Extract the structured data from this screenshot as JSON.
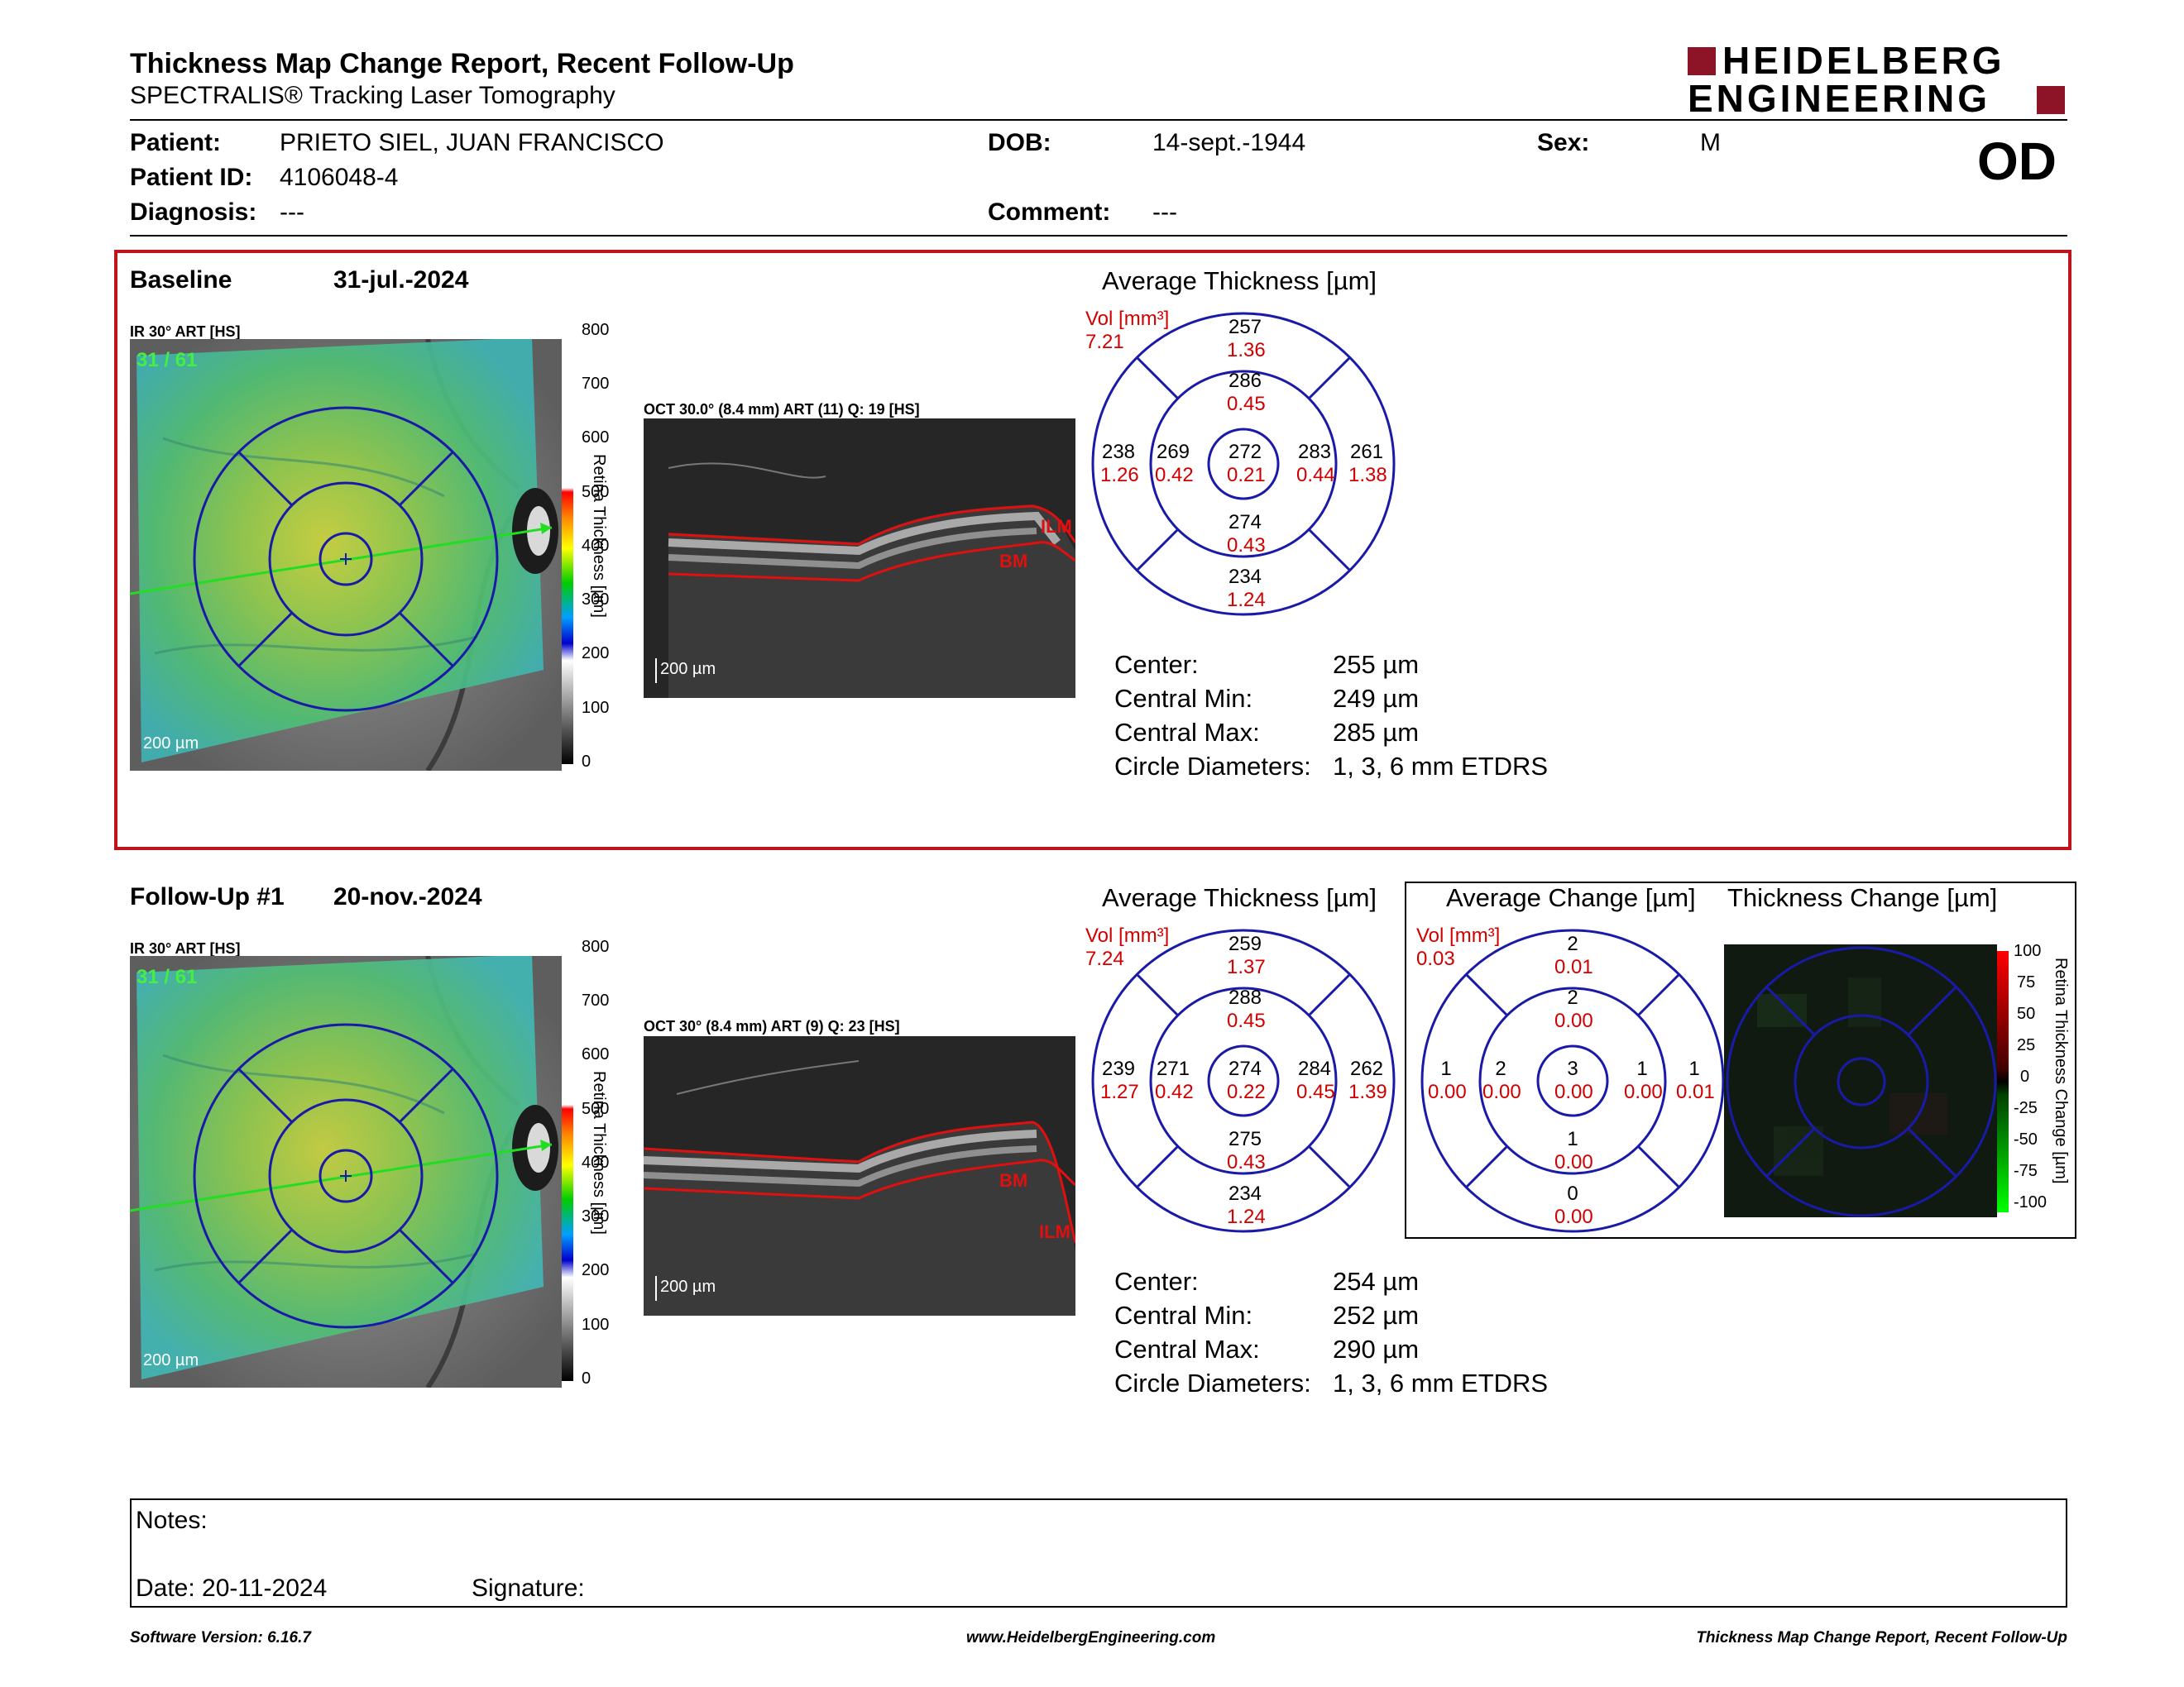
{
  "header": {
    "title": "Thickness Map Change Report, Recent Follow-Up",
    "subtitle": "SPECTRALIS® Tracking Laser Tomography",
    "logo_line1": "HEIDELBERG",
    "logo_line2": "ENGINEERING",
    "eye": "OD"
  },
  "patient": {
    "patient_label": "Patient:",
    "patient_value": "PRIETO SIEL, JUAN FRANCISCO",
    "id_label": "Patient ID:",
    "id_value": "4106048-4",
    "diagnosis_label": "Diagnosis:",
    "diagnosis_value": "---",
    "dob_label": "DOB:",
    "dob_value": "14-sept.-1944",
    "comment_label": "Comment:",
    "comment_value": "---",
    "sex_label": "Sex:",
    "sex_value": "M"
  },
  "baseline": {
    "label": "Baseline",
    "date": "31-jul.-2024",
    "ir_label": "IR 30° ART [HS]",
    "ir_counter": "31 / 61",
    "scale_text": "200 µm",
    "oct_label": "OCT 30.0° (8.4 mm) ART (11) Q: 19 [HS]",
    "oct_scale": "200 µm",
    "ilm": "ILM",
    "bm": "BM",
    "avg_title": "Average Thickness [µm]",
    "vol_label": "Vol [mm³]",
    "vol_total": "7.21",
    "sectors": {
      "outer_sup": [
        "257",
        "1.36"
      ],
      "inner_sup": [
        "286",
        "0.45"
      ],
      "outer_temp": [
        "238",
        "1.26"
      ],
      "inner_temp": [
        "269",
        "0.42"
      ],
      "center": [
        "272",
        "0.21"
      ],
      "inner_nas": [
        "283",
        "0.44"
      ],
      "outer_nas": [
        "261",
        "1.38"
      ],
      "inner_inf": [
        "274",
        "0.43"
      ],
      "outer_inf": [
        "234",
        "1.24"
      ]
    },
    "stats": {
      "center_label": "Center:",
      "center_value": "255 µm",
      "min_label": "Central Min:",
      "min_value": "249 µm",
      "max_label": "Central Max:",
      "max_value": "285 µm",
      "diam_label": "Circle Diameters:",
      "diam_value": "1, 3, 6 mm ETDRS"
    }
  },
  "followup": {
    "label": "Follow-Up #1",
    "date": "20-nov.-2024",
    "ir_label": "IR 30° ART [HS]",
    "ir_counter": "31 / 61",
    "scale_text": "200 µm",
    "oct_label": "OCT 30° (8.4 mm) ART (9) Q: 23 [HS]",
    "oct_scale": "200 µm",
    "ilm": "ILM",
    "bm": "BM",
    "avg_title": "Average Thickness [µm]",
    "vol_label": "Vol [mm³]",
    "vol_total": "7.24",
    "sectors": {
      "outer_sup": [
        "259",
        "1.37"
      ],
      "inner_sup": [
        "288",
        "0.45"
      ],
      "outer_temp": [
        "239",
        "1.27"
      ],
      "inner_temp": [
        "271",
        "0.42"
      ],
      "center": [
        "274",
        "0.22"
      ],
      "inner_nas": [
        "284",
        "0.45"
      ],
      "outer_nas": [
        "262",
        "1.39"
      ],
      "inner_inf": [
        "275",
        "0.43"
      ],
      "outer_inf": [
        "234",
        "1.24"
      ]
    },
    "stats": {
      "center_label": "Center:",
      "center_value": "254 µm",
      "min_label": "Central Min:",
      "min_value": "252 µm",
      "max_label": "Central Max:",
      "max_value": "290 µm",
      "diam_label": "Circle Diameters:",
      "diam_value": "1, 3, 6 mm ETDRS"
    },
    "change_title": "Average Change [µm]",
    "change_vol_label": "Vol [mm³]",
    "change_vol_total": "0.03",
    "change_sectors": {
      "outer_sup": [
        "2",
        "0.01"
      ],
      "inner_sup": [
        "2",
        "0.00"
      ],
      "outer_temp": [
        "1",
        "0.00"
      ],
      "inner_temp": [
        "2",
        "0.00"
      ],
      "center": [
        "3",
        "0.00"
      ],
      "inner_nas": [
        "1",
        "0.00"
      ],
      "outer_nas": [
        "1",
        "0.01"
      ],
      "inner_inf": [
        "1",
        "0.00"
      ],
      "outer_inf": [
        "0",
        "0.00"
      ]
    },
    "thickness_change_title": "Thickness Change [µm]",
    "change_scale_label": "Retina Thickness Change [µm]",
    "change_ticks": [
      "100",
      "75",
      "50",
      "25",
      "0",
      "-25",
      "-50",
      "-75",
      "-100"
    ]
  },
  "colorbar": {
    "label": "Retina Thickness [µm]",
    "ticks": [
      "800",
      "700",
      "600",
      "500",
      "400",
      "300",
      "200",
      "100",
      "0"
    ]
  },
  "notes": {
    "notes_label": "Notes:",
    "date_label": "Date: 20-11-2024",
    "signature_label": "Signature:"
  },
  "footer": {
    "version": "Software Version: 6.16.7",
    "website": "www.HeidelbergEngineering.com",
    "report_name": "Thickness Map Change Report, Recent Follow-Up"
  },
  "colors": {
    "frame_red": "#c0141c",
    "logo_red": "#8c1426",
    "grid_blue": "#1a1aa8",
    "vol_red": "#d10000"
  }
}
